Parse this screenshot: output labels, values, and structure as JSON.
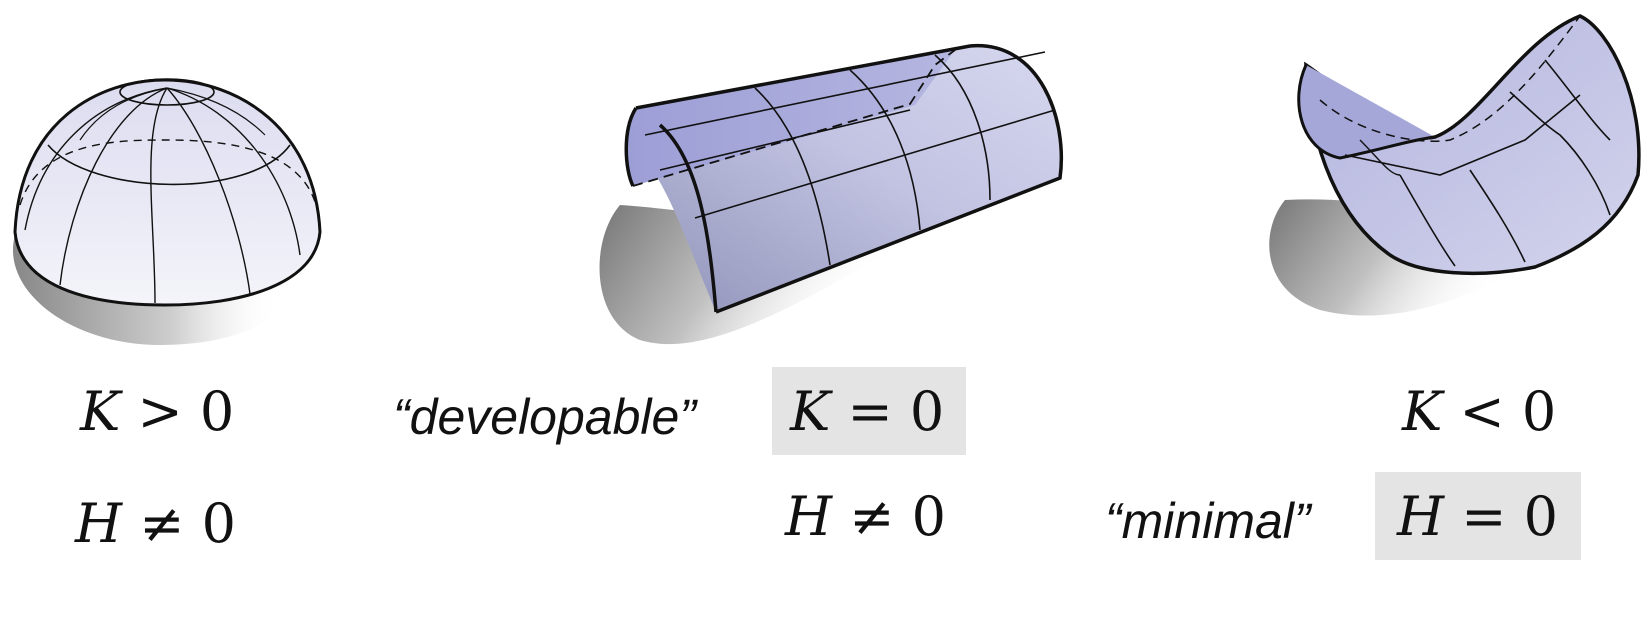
{
  "surfaces": [
    {
      "name": "sphere-cap",
      "shading": "#ecebf6"
    },
    {
      "name": "cylinder",
      "shading": "#a7a9d9"
    },
    {
      "name": "saddle",
      "shading": "#c9cae6"
    }
  ],
  "labels": {
    "sphere": {
      "K_var": "K",
      "K_rel": " > ",
      "K_val": "0",
      "H_var": "H",
      "H_rel": " ≠ ",
      "H_val": "0"
    },
    "cylinder": {
      "tag": "“developable”",
      "K_var": "K",
      "K_rel": " = ",
      "K_val": "0",
      "H_var": "H",
      "H_rel": " ≠ ",
      "H_val": "0"
    },
    "saddle": {
      "K_var": "K",
      "K_rel": " < ",
      "K_val": "0",
      "tag": "“minimal”",
      "H_var": "H",
      "H_rel": " = ",
      "H_val": "0"
    }
  },
  "highlight_color": "#e4e4e4"
}
